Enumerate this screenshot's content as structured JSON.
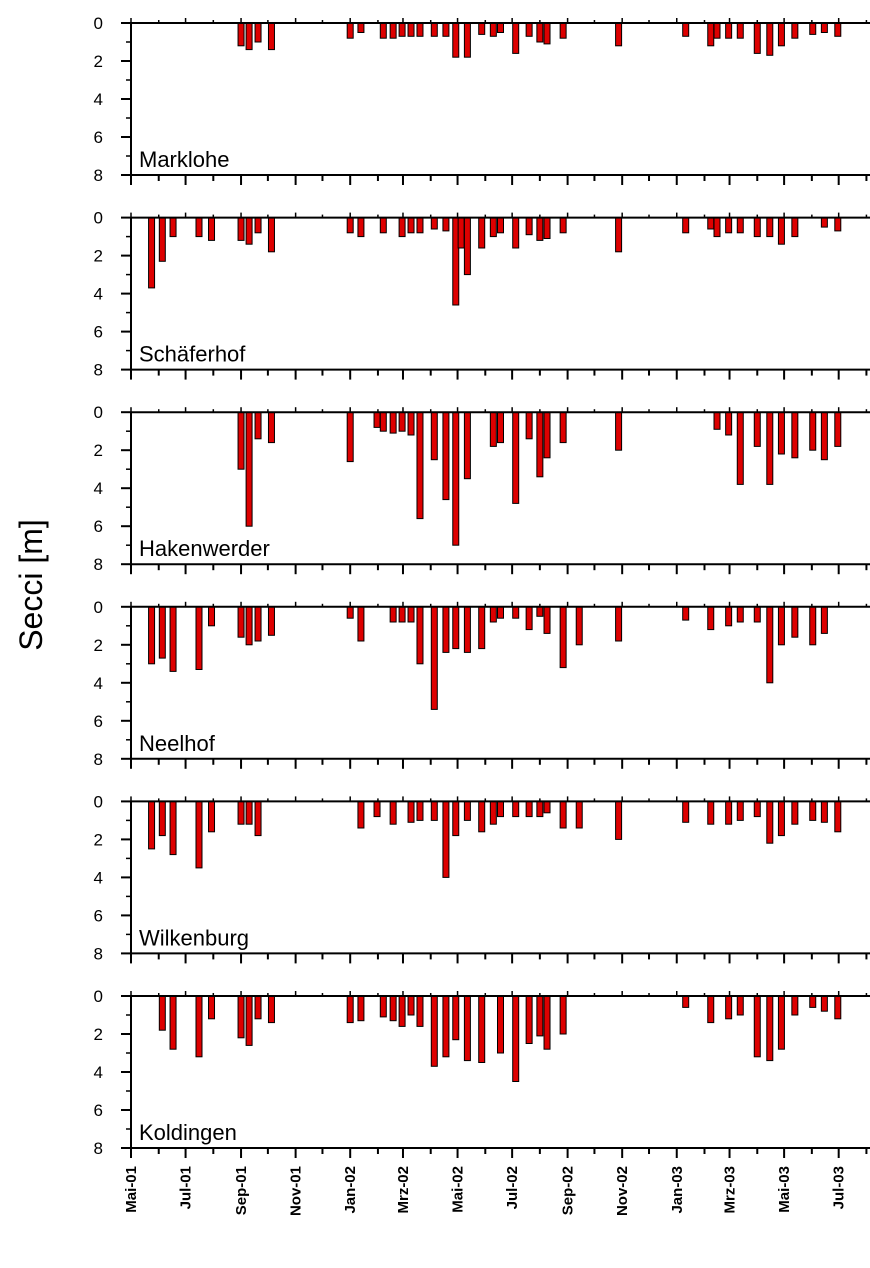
{
  "chart_data": {
    "type": "bar",
    "ylabel": "Secci [m]",
    "ylim": [
      0,
      8
    ],
    "y_ticks": [
      "0",
      "2",
      "4",
      "6",
      "8"
    ],
    "y_inverted": true,
    "x_range": [
      "2001-05-01",
      "2003-08-05"
    ],
    "x_tick_labels": [
      "Mai-01",
      "Jul-01",
      "Sep-01",
      "Nov-01",
      "Jan-02",
      "Mrz-02",
      "Mai-02",
      "Jul-02",
      "Sep-02",
      "Nov-02",
      "Jan-03",
      "Mrz-03",
      "Mai-03",
      "Jul-03"
    ],
    "bar_color": "#dd0000",
    "panels": [
      {
        "name": "Marklohe",
        "bars": [
          {
            "date": "2001-09-01",
            "value": 1.2
          },
          {
            "date": "2001-09-10",
            "value": 1.4
          },
          {
            "date": "2001-09-20",
            "value": 1.0
          },
          {
            "date": "2001-10-05",
            "value": 1.4
          },
          {
            "date": "2002-01-01",
            "value": 0.8
          },
          {
            "date": "2002-01-13",
            "value": 0.5
          },
          {
            "date": "2002-02-07",
            "value": 0.8
          },
          {
            "date": "2002-02-18",
            "value": 0.8
          },
          {
            "date": "2002-02-28",
            "value": 0.7
          },
          {
            "date": "2002-03-10",
            "value": 0.7
          },
          {
            "date": "2002-03-20",
            "value": 0.7
          },
          {
            "date": "2002-04-05",
            "value": 0.7
          },
          {
            "date": "2002-04-18",
            "value": 0.7
          },
          {
            "date": "2002-04-29",
            "value": 1.8
          },
          {
            "date": "2002-05-12",
            "value": 1.8
          },
          {
            "date": "2002-05-28",
            "value": 0.6
          },
          {
            "date": "2002-06-10",
            "value": 0.7
          },
          {
            "date": "2002-06-18",
            "value": 0.5
          },
          {
            "date": "2002-07-05",
            "value": 1.6
          },
          {
            "date": "2002-07-20",
            "value": 0.7
          },
          {
            "date": "2002-08-01",
            "value": 1.0
          },
          {
            "date": "2002-08-09",
            "value": 1.1
          },
          {
            "date": "2002-08-27",
            "value": 0.8
          },
          {
            "date": "2002-10-28",
            "value": 1.2
          },
          {
            "date": "2003-01-11",
            "value": 0.7
          },
          {
            "date": "2003-02-08",
            "value": 1.2
          },
          {
            "date": "2003-02-15",
            "value": 0.8
          },
          {
            "date": "2003-02-28",
            "value": 0.8
          },
          {
            "date": "2003-03-13",
            "value": 0.8
          },
          {
            "date": "2003-04-01",
            "value": 1.6
          },
          {
            "date": "2003-04-15",
            "value": 1.7
          },
          {
            "date": "2003-04-28",
            "value": 1.2
          },
          {
            "date": "2003-05-13",
            "value": 0.8
          },
          {
            "date": "2003-06-02",
            "value": 0.6
          },
          {
            "date": "2003-06-15",
            "value": 0.5
          },
          {
            "date": "2003-06-30",
            "value": 0.7
          }
        ]
      },
      {
        "name": "Schäferhof",
        "bars": [
          {
            "date": "2001-05-24",
            "value": 3.7
          },
          {
            "date": "2001-06-05",
            "value": 2.3
          },
          {
            "date": "2001-06-17",
            "value": 1.0
          },
          {
            "date": "2001-07-16",
            "value": 1.0
          },
          {
            "date": "2001-07-30",
            "value": 1.2
          },
          {
            "date": "2001-09-01",
            "value": 1.2
          },
          {
            "date": "2001-09-10",
            "value": 1.4
          },
          {
            "date": "2001-09-20",
            "value": 0.8
          },
          {
            "date": "2001-10-05",
            "value": 1.8
          },
          {
            "date": "2002-01-01",
            "value": 0.8
          },
          {
            "date": "2002-01-13",
            "value": 1.0
          },
          {
            "date": "2002-02-07",
            "value": 0.8
          },
          {
            "date": "2002-02-28",
            "value": 1.0
          },
          {
            "date": "2002-03-10",
            "value": 0.8
          },
          {
            "date": "2002-03-20",
            "value": 0.8
          },
          {
            "date": "2002-04-05",
            "value": 0.6
          },
          {
            "date": "2002-04-18",
            "value": 0.7
          },
          {
            "date": "2002-04-29",
            "value": 4.6
          },
          {
            "date": "2002-05-05",
            "value": 1.6
          },
          {
            "date": "2002-05-12",
            "value": 3.0
          },
          {
            "date": "2002-05-28",
            "value": 1.6
          },
          {
            "date": "2002-06-10",
            "value": 1.0
          },
          {
            "date": "2002-06-18",
            "value": 0.8
          },
          {
            "date": "2002-07-05",
            "value": 1.6
          },
          {
            "date": "2002-07-20",
            "value": 0.9
          },
          {
            "date": "2002-08-01",
            "value": 1.2
          },
          {
            "date": "2002-08-09",
            "value": 1.1
          },
          {
            "date": "2002-08-27",
            "value": 0.8
          },
          {
            "date": "2002-10-28",
            "value": 1.8
          },
          {
            "date": "2003-01-11",
            "value": 0.8
          },
          {
            "date": "2003-02-08",
            "value": 0.6
          },
          {
            "date": "2003-02-15",
            "value": 1.0
          },
          {
            "date": "2003-02-28",
            "value": 0.8
          },
          {
            "date": "2003-03-13",
            "value": 0.8
          },
          {
            "date": "2003-04-01",
            "value": 1.0
          },
          {
            "date": "2003-04-15",
            "value": 1.0
          },
          {
            "date": "2003-04-28",
            "value": 1.4
          },
          {
            "date": "2003-05-13",
            "value": 1.0
          },
          {
            "date": "2003-06-15",
            "value": 0.5
          },
          {
            "date": "2003-06-30",
            "value": 0.7
          }
        ]
      },
      {
        "name": "Hakenwerder",
        "bars": [
          {
            "date": "2001-09-01",
            "value": 3.0
          },
          {
            "date": "2001-09-10",
            "value": 6.0
          },
          {
            "date": "2001-09-20",
            "value": 1.4
          },
          {
            "date": "2001-10-05",
            "value": 1.6
          },
          {
            "date": "2002-01-01",
            "value": 2.6
          },
          {
            "date": "2002-01-31",
            "value": 0.8
          },
          {
            "date": "2002-02-07",
            "value": 1.0
          },
          {
            "date": "2002-02-18",
            "value": 1.1
          },
          {
            "date": "2002-02-28",
            "value": 1.0
          },
          {
            "date": "2002-03-10",
            "value": 1.2
          },
          {
            "date": "2002-03-20",
            "value": 5.6
          },
          {
            "date": "2002-04-05",
            "value": 2.5
          },
          {
            "date": "2002-04-18",
            "value": 4.6
          },
          {
            "date": "2002-04-29",
            "value": 7.0
          },
          {
            "date": "2002-05-12",
            "value": 3.5
          },
          {
            "date": "2002-06-10",
            "value": 1.8
          },
          {
            "date": "2002-06-18",
            "value": 1.6
          },
          {
            "date": "2002-07-05",
            "value": 4.8
          },
          {
            "date": "2002-07-20",
            "value": 1.4
          },
          {
            "date": "2002-08-01",
            "value": 3.4
          },
          {
            "date": "2002-08-09",
            "value": 2.4
          },
          {
            "date": "2002-08-27",
            "value": 1.6
          },
          {
            "date": "2002-10-28",
            "value": 2.0
          },
          {
            "date": "2003-02-15",
            "value": 0.9
          },
          {
            "date": "2003-02-28",
            "value": 1.2
          },
          {
            "date": "2003-03-13",
            "value": 3.8
          },
          {
            "date": "2003-04-01",
            "value": 1.8
          },
          {
            "date": "2003-04-15",
            "value": 3.8
          },
          {
            "date": "2003-04-28",
            "value": 2.2
          },
          {
            "date": "2003-05-13",
            "value": 2.4
          },
          {
            "date": "2003-06-02",
            "value": 2.0
          },
          {
            "date": "2003-06-15",
            "value": 2.5
          },
          {
            "date": "2003-06-30",
            "value": 1.8
          }
        ]
      },
      {
        "name": "Neelhof",
        "bars": [
          {
            "date": "2001-05-24",
            "value": 3.0
          },
          {
            "date": "2001-06-05",
            "value": 2.7
          },
          {
            "date": "2001-06-17",
            "value": 3.4
          },
          {
            "date": "2001-07-16",
            "value": 3.3
          },
          {
            "date": "2001-07-30",
            "value": 1.0
          },
          {
            "date": "2001-09-01",
            "value": 1.6
          },
          {
            "date": "2001-09-10",
            "value": 2.0
          },
          {
            "date": "2001-09-20",
            "value": 1.8
          },
          {
            "date": "2001-10-05",
            "value": 1.5
          },
          {
            "date": "2002-01-01",
            "value": 0.6
          },
          {
            "date": "2002-01-13",
            "value": 1.8
          },
          {
            "date": "2002-02-18",
            "value": 0.8
          },
          {
            "date": "2002-02-28",
            "value": 0.8
          },
          {
            "date": "2002-03-10",
            "value": 0.8
          },
          {
            "date": "2002-03-20",
            "value": 3.0
          },
          {
            "date": "2002-04-05",
            "value": 5.4
          },
          {
            "date": "2002-04-18",
            "value": 2.4
          },
          {
            "date": "2002-04-29",
            "value": 2.2
          },
          {
            "date": "2002-05-12",
            "value": 2.4
          },
          {
            "date": "2002-05-28",
            "value": 2.2
          },
          {
            "date": "2002-06-10",
            "value": 0.8
          },
          {
            "date": "2002-06-18",
            "value": 0.6
          },
          {
            "date": "2002-07-05",
            "value": 0.6
          },
          {
            "date": "2002-07-20",
            "value": 1.2
          },
          {
            "date": "2002-08-01",
            "value": 0.5
          },
          {
            "date": "2002-08-09",
            "value": 1.4
          },
          {
            "date": "2002-08-27",
            "value": 3.2
          },
          {
            "date": "2002-09-14",
            "value": 2.0
          },
          {
            "date": "2002-10-28",
            "value": 1.8
          },
          {
            "date": "2003-01-11",
            "value": 0.7
          },
          {
            "date": "2003-02-08",
            "value": 1.2
          },
          {
            "date": "2003-02-28",
            "value": 1.0
          },
          {
            "date": "2003-03-13",
            "value": 0.8
          },
          {
            "date": "2003-04-01",
            "value": 0.8
          },
          {
            "date": "2003-04-15",
            "value": 4.0
          },
          {
            "date": "2003-04-28",
            "value": 2.0
          },
          {
            "date": "2003-05-13",
            "value": 1.6
          },
          {
            "date": "2003-06-02",
            "value": 2.0
          },
          {
            "date": "2003-06-15",
            "value": 1.4
          }
        ]
      },
      {
        "name": "Wilkenburg",
        "bars": [
          {
            "date": "2001-05-24",
            "value": 2.5
          },
          {
            "date": "2001-06-05",
            "value": 1.8
          },
          {
            "date": "2001-06-17",
            "value": 2.8
          },
          {
            "date": "2001-07-16",
            "value": 3.5
          },
          {
            "date": "2001-07-30",
            "value": 1.6
          },
          {
            "date": "2001-09-01",
            "value": 1.2
          },
          {
            "date": "2001-09-10",
            "value": 1.2
          },
          {
            "date": "2001-09-20",
            "value": 1.8
          },
          {
            "date": "2002-01-13",
            "value": 1.4
          },
          {
            "date": "2002-01-31",
            "value": 0.8
          },
          {
            "date": "2002-02-18",
            "value": 1.2
          },
          {
            "date": "2002-03-10",
            "value": 1.1
          },
          {
            "date": "2002-03-20",
            "value": 1.0
          },
          {
            "date": "2002-04-05",
            "value": 1.0
          },
          {
            "date": "2002-04-18",
            "value": 4.0
          },
          {
            "date": "2002-04-29",
            "value": 1.8
          },
          {
            "date": "2002-05-12",
            "value": 1.0
          },
          {
            "date": "2002-05-28",
            "value": 1.6
          },
          {
            "date": "2002-06-10",
            "value": 1.2
          },
          {
            "date": "2002-06-18",
            "value": 0.8
          },
          {
            "date": "2002-07-05",
            "value": 0.8
          },
          {
            "date": "2002-07-20",
            "value": 0.8
          },
          {
            "date": "2002-08-01",
            "value": 0.8
          },
          {
            "date": "2002-08-09",
            "value": 0.6
          },
          {
            "date": "2002-08-27",
            "value": 1.4
          },
          {
            "date": "2002-09-14",
            "value": 1.4
          },
          {
            "date": "2002-10-28",
            "value": 2.0
          },
          {
            "date": "2003-01-11",
            "value": 1.1
          },
          {
            "date": "2003-02-08",
            "value": 1.2
          },
          {
            "date": "2003-02-28",
            "value": 1.2
          },
          {
            "date": "2003-03-13",
            "value": 1.0
          },
          {
            "date": "2003-04-01",
            "value": 0.8
          },
          {
            "date": "2003-04-15",
            "value": 2.2
          },
          {
            "date": "2003-04-28",
            "value": 1.8
          },
          {
            "date": "2003-05-13",
            "value": 1.2
          },
          {
            "date": "2003-06-02",
            "value": 1.0
          },
          {
            "date": "2003-06-15",
            "value": 1.1
          },
          {
            "date": "2003-06-30",
            "value": 1.6
          }
        ]
      },
      {
        "name": "Koldingen",
        "bars": [
          {
            "date": "2001-06-05",
            "value": 1.8
          },
          {
            "date": "2001-06-17",
            "value": 2.8
          },
          {
            "date": "2001-07-16",
            "value": 3.2
          },
          {
            "date": "2001-07-30",
            "value": 1.2
          },
          {
            "date": "2001-09-01",
            "value": 2.2
          },
          {
            "date": "2001-09-10",
            "value": 2.6
          },
          {
            "date": "2001-09-20",
            "value": 1.2
          },
          {
            "date": "2001-10-05",
            "value": 1.4
          },
          {
            "date": "2002-01-01",
            "value": 1.4
          },
          {
            "date": "2002-01-13",
            "value": 1.3
          },
          {
            "date": "2002-02-07",
            "value": 1.1
          },
          {
            "date": "2002-02-18",
            "value": 1.3
          },
          {
            "date": "2002-02-28",
            "value": 1.6
          },
          {
            "date": "2002-03-10",
            "value": 1.0
          },
          {
            "date": "2002-03-20",
            "value": 1.6
          },
          {
            "date": "2002-04-05",
            "value": 3.7
          },
          {
            "date": "2002-04-18",
            "value": 3.2
          },
          {
            "date": "2002-04-29",
            "value": 2.3
          },
          {
            "date": "2002-05-12",
            "value": 3.4
          },
          {
            "date": "2002-05-28",
            "value": 3.5
          },
          {
            "date": "2002-06-18",
            "value": 3.0
          },
          {
            "date": "2002-07-05",
            "value": 4.5
          },
          {
            "date": "2002-07-20",
            "value": 2.5
          },
          {
            "date": "2002-08-01",
            "value": 2.1
          },
          {
            "date": "2002-08-09",
            "value": 2.8
          },
          {
            "date": "2002-08-27",
            "value": 2.0
          },
          {
            "date": "2003-01-11",
            "value": 0.6
          },
          {
            "date": "2003-02-08",
            "value": 1.4
          },
          {
            "date": "2003-02-28",
            "value": 1.2
          },
          {
            "date": "2003-03-13",
            "value": 1.0
          },
          {
            "date": "2003-04-01",
            "value": 3.2
          },
          {
            "date": "2003-04-15",
            "value": 3.4
          },
          {
            "date": "2003-04-28",
            "value": 2.8
          },
          {
            "date": "2003-05-13",
            "value": 1.0
          },
          {
            "date": "2003-06-02",
            "value": 0.6
          },
          {
            "date": "2003-06-15",
            "value": 0.8
          },
          {
            "date": "2003-06-30",
            "value": 1.2
          }
        ]
      }
    ]
  }
}
